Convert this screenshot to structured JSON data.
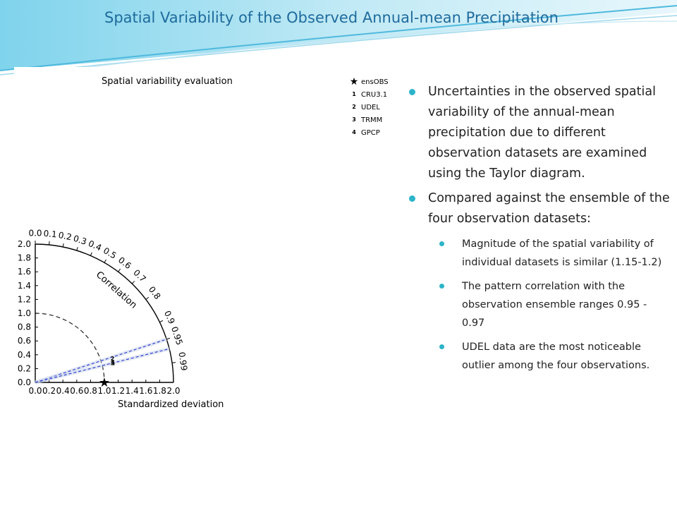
{
  "slide": {
    "title": "Spatial Variability of the Observed Annual-mean Precipitation",
    "bullets": [
      {
        "text": "Uncertainties in the observed spatial variability of the annual-mean precipitation due to different observation datasets are examined using the Taylor diagram.",
        "sub": []
      },
      {
        "text": "Compared against the ensemble of the four observation datasets:",
        "sub": [
          "Magnitude of the spatial variability of individual datasets is similar (1.15-1.2)",
          "The pattern correlation with the observation ensemble ranges 0.95 - 0.97",
          "UDEL data are the most noticeable outlier among the four observations."
        ]
      }
    ]
  },
  "chart_data": {
    "type": "scatter",
    "diagram": "taylor",
    "title": "Spatial variability evaluation",
    "xlabel": "Standardized deviation",
    "correlation_label": "Correlation",
    "std_range": [
      0.0,
      2.0
    ],
    "std_ticks": [
      "0.0",
      "0.2",
      "0.4",
      "0.6",
      "0.8",
      "1.0",
      "1.2",
      "1.4",
      "1.6",
      "1.8",
      "2.0"
    ],
    "correlation_ticks": [
      "0.0",
      "0.1",
      "0.2",
      "0.3",
      "0.4",
      "0.5",
      "0.6",
      "0.7",
      "0.8",
      "0.9",
      "0.95",
      "0.99"
    ],
    "reference": {
      "marker": "★",
      "label": "ensOBS",
      "std": 1.0,
      "correlation": 1.0
    },
    "points": [
      {
        "marker": "1",
        "label": "CRU3.1",
        "std": 1.16,
        "correlation": 0.97
      },
      {
        "marker": "2",
        "label": "UDEL",
        "std": 1.17,
        "correlation": 0.955
      },
      {
        "marker": "3",
        "label": "TRMM",
        "std": 1.15,
        "correlation": 0.97
      },
      {
        "marker": "4",
        "label": "GPCP",
        "std": 1.16,
        "correlation": 0.968
      }
    ],
    "bounding_correlations": [
      0.95,
      0.97
    ],
    "legend_position": "top-right",
    "colors": {
      "axes": "#000000",
      "bounds": "#2233cc",
      "title": "#1f6b9c",
      "bullet": "#2cb4c9"
    }
  }
}
